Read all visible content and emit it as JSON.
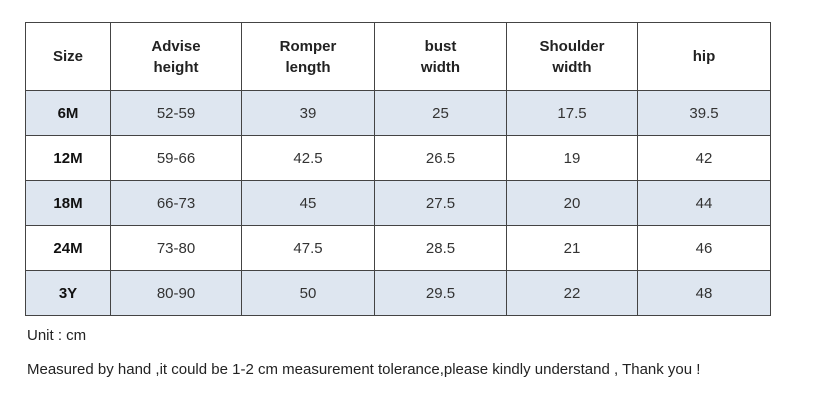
{
  "table": {
    "header": [
      "Size",
      "Advise\nheight",
      "Romper\nlength",
      "bust\nwidth",
      "Shoulder\nwidth",
      "hip"
    ],
    "rows": [
      [
        "6M",
        "52-59",
        "39",
        "25",
        "17.5",
        "39.5"
      ],
      [
        "12M",
        "59-66",
        "42.5",
        "26.5",
        "19",
        "42"
      ],
      [
        "18M",
        "66-73",
        "45",
        "27.5",
        "20",
        "44"
      ],
      [
        "24M",
        "73-80",
        "47.5",
        "28.5",
        "21",
        "46"
      ],
      [
        "3Y",
        "80-90",
        "50",
        "29.5",
        "22",
        "48"
      ]
    ]
  },
  "notes": [
    "Unit : cm",
    "Measured by hand ,it could be 1-2 cm measurement tolerance,please kindly understand , Thank you !"
  ]
}
